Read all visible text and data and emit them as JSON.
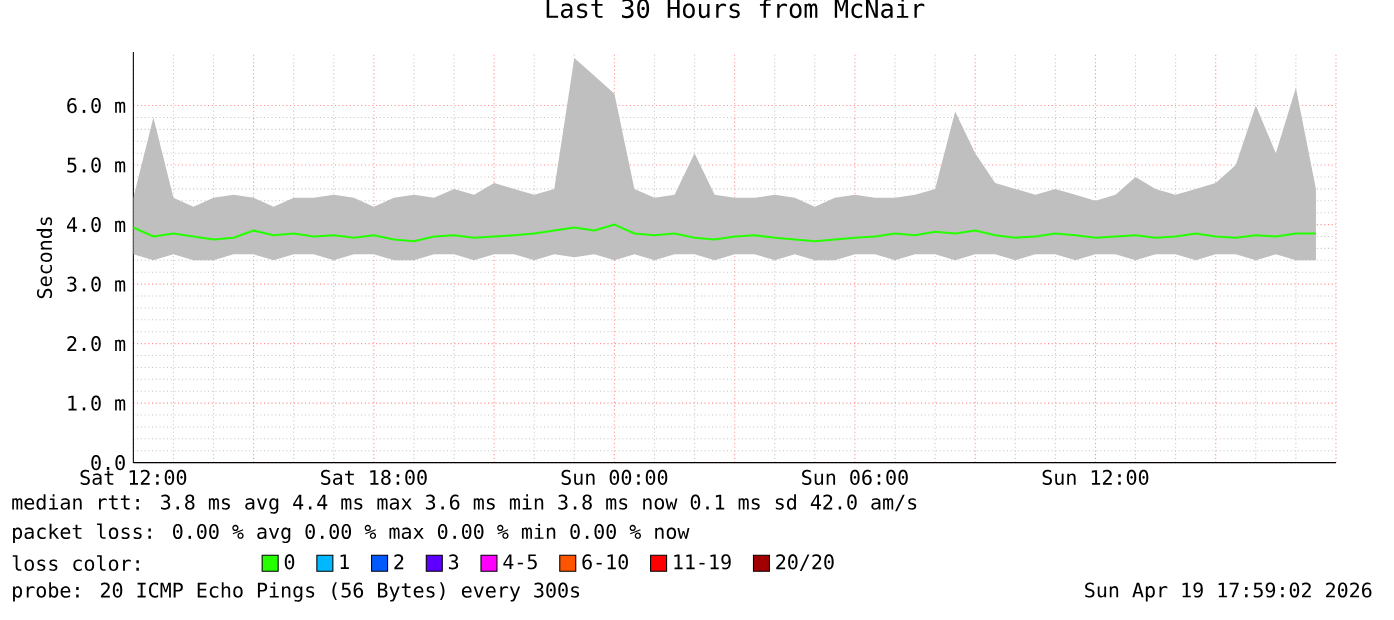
{
  "chart_data": {
    "type": "line",
    "title": "Last 30 Hours from McNair",
    "ylabel": "Seconds",
    "categories": [
      "Sat 12:00",
      null,
      null,
      null,
      null,
      null,
      null,
      null,
      null,
      null,
      null,
      null,
      "Sat 18:00",
      null,
      null,
      null,
      null,
      null,
      null,
      null,
      null,
      null,
      null,
      null,
      "Sun 00:00",
      null,
      null,
      null,
      null,
      null,
      null,
      null,
      null,
      null,
      null,
      null,
      "Sun 06:00",
      null,
      null,
      null,
      null,
      null,
      null,
      null,
      null,
      null,
      null,
      null,
      "Sun 12:00",
      null,
      null,
      null,
      null,
      null,
      null,
      null,
      null,
      null,
      null,
      null
    ],
    "series": [
      {
        "name": "0",
        "color": "#26ff00",
        "values": [
          3.95,
          3.8,
          3.85,
          3.8,
          3.75,
          3.78,
          3.9,
          3.82,
          3.85,
          3.8,
          3.82,
          3.78,
          3.82,
          3.75,
          3.72,
          3.8,
          3.82,
          3.78,
          3.8,
          3.82,
          3.85,
          3.9,
          3.95,
          3.9,
          4.0,
          3.85,
          3.82,
          3.85,
          3.78,
          3.75,
          3.8,
          3.82,
          3.78,
          3.75,
          3.72,
          3.75,
          3.78,
          3.8,
          3.85,
          3.82,
          3.88,
          3.85,
          3.9,
          3.82,
          3.78,
          3.8,
          3.85,
          3.82,
          3.78,
          3.8,
          3.82,
          3.78,
          3.8,
          3.85,
          3.8,
          3.78,
          3.82,
          3.8,
          3.85,
          3.85
        ],
        "lower": [
          3.5,
          3.4,
          3.5,
          3.4,
          3.4,
          3.5,
          3.5,
          3.4,
          3.5,
          3.5,
          3.4,
          3.5,
          3.5,
          3.4,
          3.4,
          3.5,
          3.5,
          3.4,
          3.5,
          3.5,
          3.4,
          3.5,
          3.45,
          3.5,
          3.4,
          3.5,
          3.4,
          3.5,
          3.5,
          3.4,
          3.5,
          3.5,
          3.4,
          3.5,
          3.4,
          3.4,
          3.5,
          3.5,
          3.4,
          3.5,
          3.5,
          3.4,
          3.5,
          3.5,
          3.4,
          3.5,
          3.5,
          3.4,
          3.5,
          3.5,
          3.4,
          3.5,
          3.5,
          3.4,
          3.5,
          3.5,
          3.4,
          3.5,
          3.4,
          3.4
        ],
        "upper": [
          4.45,
          5.8,
          4.45,
          4.3,
          4.45,
          4.5,
          4.45,
          4.3,
          4.45,
          4.45,
          4.5,
          4.45,
          4.3,
          4.45,
          4.5,
          4.45,
          4.6,
          4.5,
          4.7,
          4.6,
          4.5,
          4.6,
          6.8,
          6.5,
          6.2,
          4.6,
          4.45,
          4.5,
          5.2,
          4.5,
          4.45,
          4.45,
          4.5,
          4.45,
          4.3,
          4.45,
          4.5,
          4.45,
          4.45,
          4.5,
          4.6,
          5.9,
          5.2,
          4.7,
          4.6,
          4.5,
          4.6,
          4.5,
          4.4,
          4.5,
          4.8,
          4.6,
          4.5,
          4.6,
          4.7,
          5.0,
          6.0,
          5.2,
          6.3,
          4.6
        ]
      },
      {
        "name": "1",
        "color": "#00b8ff",
        "values": [
          null,
          null,
          null,
          null,
          null,
          null,
          null,
          null,
          null,
          null,
          null,
          null,
          null,
          null,
          null,
          null,
          null,
          null,
          null,
          null,
          null,
          null,
          null,
          null,
          null,
          null,
          null,
          null,
          null,
          null,
          null,
          null,
          null,
          null,
          null,
          null,
          null,
          null,
          null,
          null,
          null,
          null,
          null,
          null,
          null,
          null,
          null,
          null,
          null,
          null,
          null,
          null,
          null,
          null,
          null,
          null,
          null,
          null,
          null,
          null
        ]
      },
      {
        "name": "2",
        "color": "#0059ff",
        "values": [
          null,
          null,
          null,
          null,
          null,
          null,
          null,
          null,
          null,
          null,
          null,
          null,
          null,
          null,
          null,
          null,
          null,
          null,
          null,
          null,
          null,
          null,
          null,
          null,
          null,
          null,
          null,
          null,
          null,
          null,
          null,
          null,
          null,
          null,
          null,
          null,
          null,
          null,
          null,
          null,
          null,
          null,
          null,
          null,
          null,
          null,
          null,
          null,
          null,
          null,
          null,
          null,
          null,
          null,
          null,
          null,
          null,
          null,
          null,
          null
        ]
      },
      {
        "name": "3",
        "color": "#5e00ff",
        "values": [
          null,
          null,
          null,
          null,
          null,
          null,
          null,
          null,
          null,
          null,
          null,
          null,
          null,
          null,
          null,
          null,
          null,
          null,
          null,
          null,
          null,
          null,
          null,
          null,
          null,
          null,
          null,
          null,
          null,
          null,
          null,
          null,
          null,
          null,
          null,
          null,
          null,
          null,
          null,
          null,
          null,
          null,
          null,
          null,
          null,
          null,
          null,
          null,
          null,
          null,
          null,
          null,
          null,
          null,
          null,
          null,
          null,
          null,
          null,
          null
        ]
      },
      {
        "name": "4-5",
        "color": "#ff00ff",
        "values": [
          null,
          null,
          null,
          null,
          null,
          null,
          null,
          null,
          null,
          null,
          null,
          null,
          null,
          null,
          null,
          null,
          null,
          null,
          null,
          null,
          null,
          null,
          null,
          null,
          null,
          null,
          null,
          null,
          null,
          null,
          null,
          null,
          null,
          null,
          null,
          null,
          null,
          null,
          null,
          null,
          null,
          null,
          null,
          null,
          null,
          null,
          null,
          null,
          null,
          null,
          null,
          null,
          null,
          null,
          null,
          null,
          null,
          null,
          null,
          null
        ]
      },
      {
        "name": "6-10",
        "color": "#ff5500",
        "values": [
          null,
          null,
          null,
          null,
          null,
          null,
          null,
          null,
          null,
          null,
          null,
          null,
          null,
          null,
          null,
          null,
          null,
          null,
          null,
          null,
          null,
          null,
          null,
          null,
          null,
          null,
          null,
          null,
          null,
          null,
          null,
          null,
          null,
          null,
          null,
          null,
          null,
          null,
          null,
          null,
          null,
          null,
          null,
          null,
          null,
          null,
          null,
          null,
          null,
          null,
          null,
          null,
          null,
          null,
          null,
          null,
          null,
          null,
          null,
          null
        ]
      },
      {
        "name": "11-19",
        "color": "#ff0000",
        "values": [
          null,
          null,
          null,
          null,
          null,
          null,
          null,
          null,
          null,
          null,
          null,
          null,
          null,
          null,
          null,
          null,
          null,
          null,
          null,
          null,
          null,
          null,
          null,
          null,
          null,
          null,
          null,
          null,
          null,
          null,
          null,
          null,
          null,
          null,
          null,
          null,
          null,
          null,
          null,
          null,
          null,
          null,
          null,
          null,
          null,
          null,
          null,
          null,
          null,
          null,
          null,
          null,
          null,
          null,
          null,
          null,
          null,
          null,
          null,
          null
        ]
      },
      {
        "name": "20/20",
        "color": "#a10000",
        "values": [
          null,
          null,
          null,
          null,
          null,
          null,
          null,
          null,
          null,
          null,
          null,
          null,
          null,
          null,
          null,
          null,
          null,
          null,
          null,
          null,
          null,
          null,
          null,
          null,
          null,
          null,
          null,
          null,
          null,
          null,
          null,
          null,
          null,
          null,
          null,
          null,
          null,
          null,
          null,
          null,
          null,
          null,
          null,
          null,
          null,
          null,
          null,
          null,
          null,
          null,
          null,
          null,
          null,
          null,
          null,
          null,
          null,
          null,
          null,
          null
        ]
      }
    ],
    "ylim": [
      0,
      6.9
    ],
    "yticks": [
      {
        "value": 0,
        "label": "0.0"
      },
      {
        "value": 1,
        "label": "1.0 m"
      },
      {
        "value": 2,
        "label": "2.0 m"
      },
      {
        "value": 3,
        "label": "3.0 m"
      },
      {
        "value": 4,
        "label": "4.0 m"
      },
      {
        "value": 5,
        "label": "5.0 m"
      },
      {
        "value": 6,
        "label": "6.0 m"
      }
    ],
    "grid": true,
    "legend": "bottom",
    "legend_title": "loss color:",
    "marker": "none",
    "line_style": "solid",
    "annotations": [
      "median rtt:  3.8 ms avg  4.4 ms max  3.6 ms min  3.8 ms now  0.1 ms sd  42.0   am/s",
      "packet loss: 0.00 % avg  0.00 % max  0.00 % min  0.00 % now",
      "probe:       20 ICMP Echo Pings (56 Bytes) every 300s",
      "Sun Apr 19 17:59:02 2026"
    ]
  }
}
